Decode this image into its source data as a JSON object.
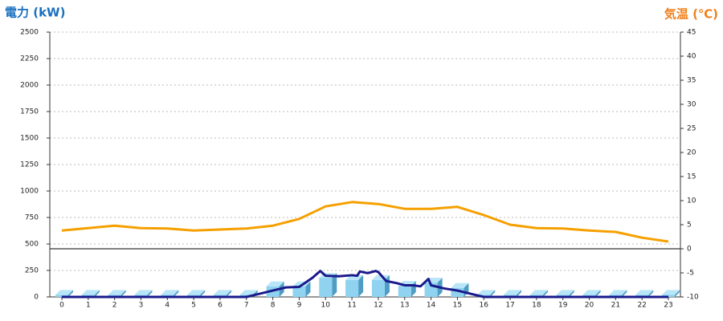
{
  "chart_data": {
    "type": "combo",
    "title_left": "電力 (kW)",
    "title_right": "気温 (℃)",
    "left_color": "#1a6fc0",
    "right_color": "#f07f1a",
    "categories": [
      "0",
      "1",
      "2",
      "3",
      "4",
      "5",
      "6",
      "7",
      "8",
      "9",
      "10",
      "11",
      "12",
      "13",
      "14",
      "15",
      "16",
      "17",
      "18",
      "19",
      "20",
      "21",
      "22",
      "23"
    ],
    "ylim": [
      0,
      2500
    ],
    "yticks": [
      0,
      250,
      500,
      750,
      1000,
      1250,
      1500,
      1750,
      2000,
      2250,
      2500
    ],
    "y2lim": [
      -10,
      45
    ],
    "y2ticks": [
      -10,
      -5,
      0,
      5,
      10,
      15,
      20,
      25,
      30,
      35,
      40,
      45
    ],
    "grid": true,
    "series": [
      {
        "kind": "bar",
        "color": "#8fd3f0",
        "values": [
          20,
          20,
          20,
          20,
          20,
          20,
          20,
          20,
          100,
          100,
          180,
          160,
          160,
          105,
          135,
          85,
          20,
          20,
          20,
          20,
          20,
          20,
          20,
          20
        ]
      },
      {
        "kind": "line",
        "color": "#1a1a8c",
        "x": [
          0,
          7,
          7.5,
          8,
          8.5,
          9,
          9.5,
          9.8,
          10,
          10.5,
          11,
          11.2,
          11.3,
          11.6,
          11.9,
          12,
          12.3,
          12.7,
          13,
          13.3,
          13.6,
          13.9,
          14,
          14.5,
          15,
          15.5,
          16,
          23
        ],
        "values": [
          0,
          0,
          30,
          60,
          90,
          95,
          180,
          245,
          200,
          195,
          205,
          200,
          240,
          225,
          245,
          235,
          150,
          130,
          110,
          110,
          100,
          170,
          110,
          80,
          60,
          30,
          0,
          0
        ]
      },
      {
        "kind": "line",
        "axis": "y2",
        "color": "#f5a000",
        "values": [
          3.8,
          4.3,
          4.8,
          4.3,
          4.2,
          3.8,
          4,
          4.2,
          4.8,
          6.2,
          8.8,
          9.7,
          9.3,
          8.3,
          8.3,
          8.7,
          7,
          5,
          4.3,
          4.2,
          3.8,
          3.5,
          2.3,
          1.5
        ]
      }
    ]
  }
}
